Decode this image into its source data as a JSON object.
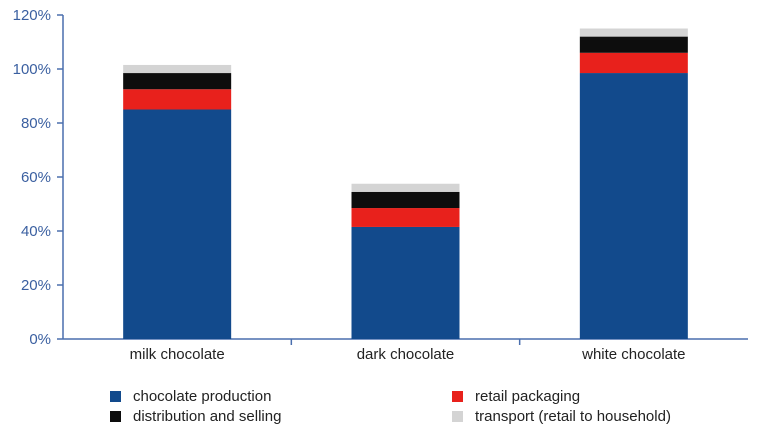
{
  "chart_data": {
    "type": "bar",
    "stacked": true,
    "categories": [
      "milk chocolate",
      "dark chocolate",
      "white chocolate"
    ],
    "series": [
      {
        "name": "chocolate production",
        "color": "#124a8c",
        "values": [
          85,
          41.5,
          98.5
        ]
      },
      {
        "name": "retail packaging",
        "color": "#e8211c",
        "values": [
          7.5,
          7,
          7.5
        ]
      },
      {
        "name": "distribution and selling",
        "color": "#0d0d0d",
        "values": [
          6,
          6,
          6
        ]
      },
      {
        "name": "transport (retail to household)",
        "color": "#d4d4d4",
        "values": [
          3,
          3,
          3
        ]
      }
    ],
    "ylim": [
      0,
      120
    ],
    "yticks": [
      "0%",
      "20%",
      "40%",
      "60%",
      "80%",
      "100%",
      "120%"
    ],
    "grid": false,
    "legend_position": "bottom",
    "axis_color": "#4a6fae"
  }
}
